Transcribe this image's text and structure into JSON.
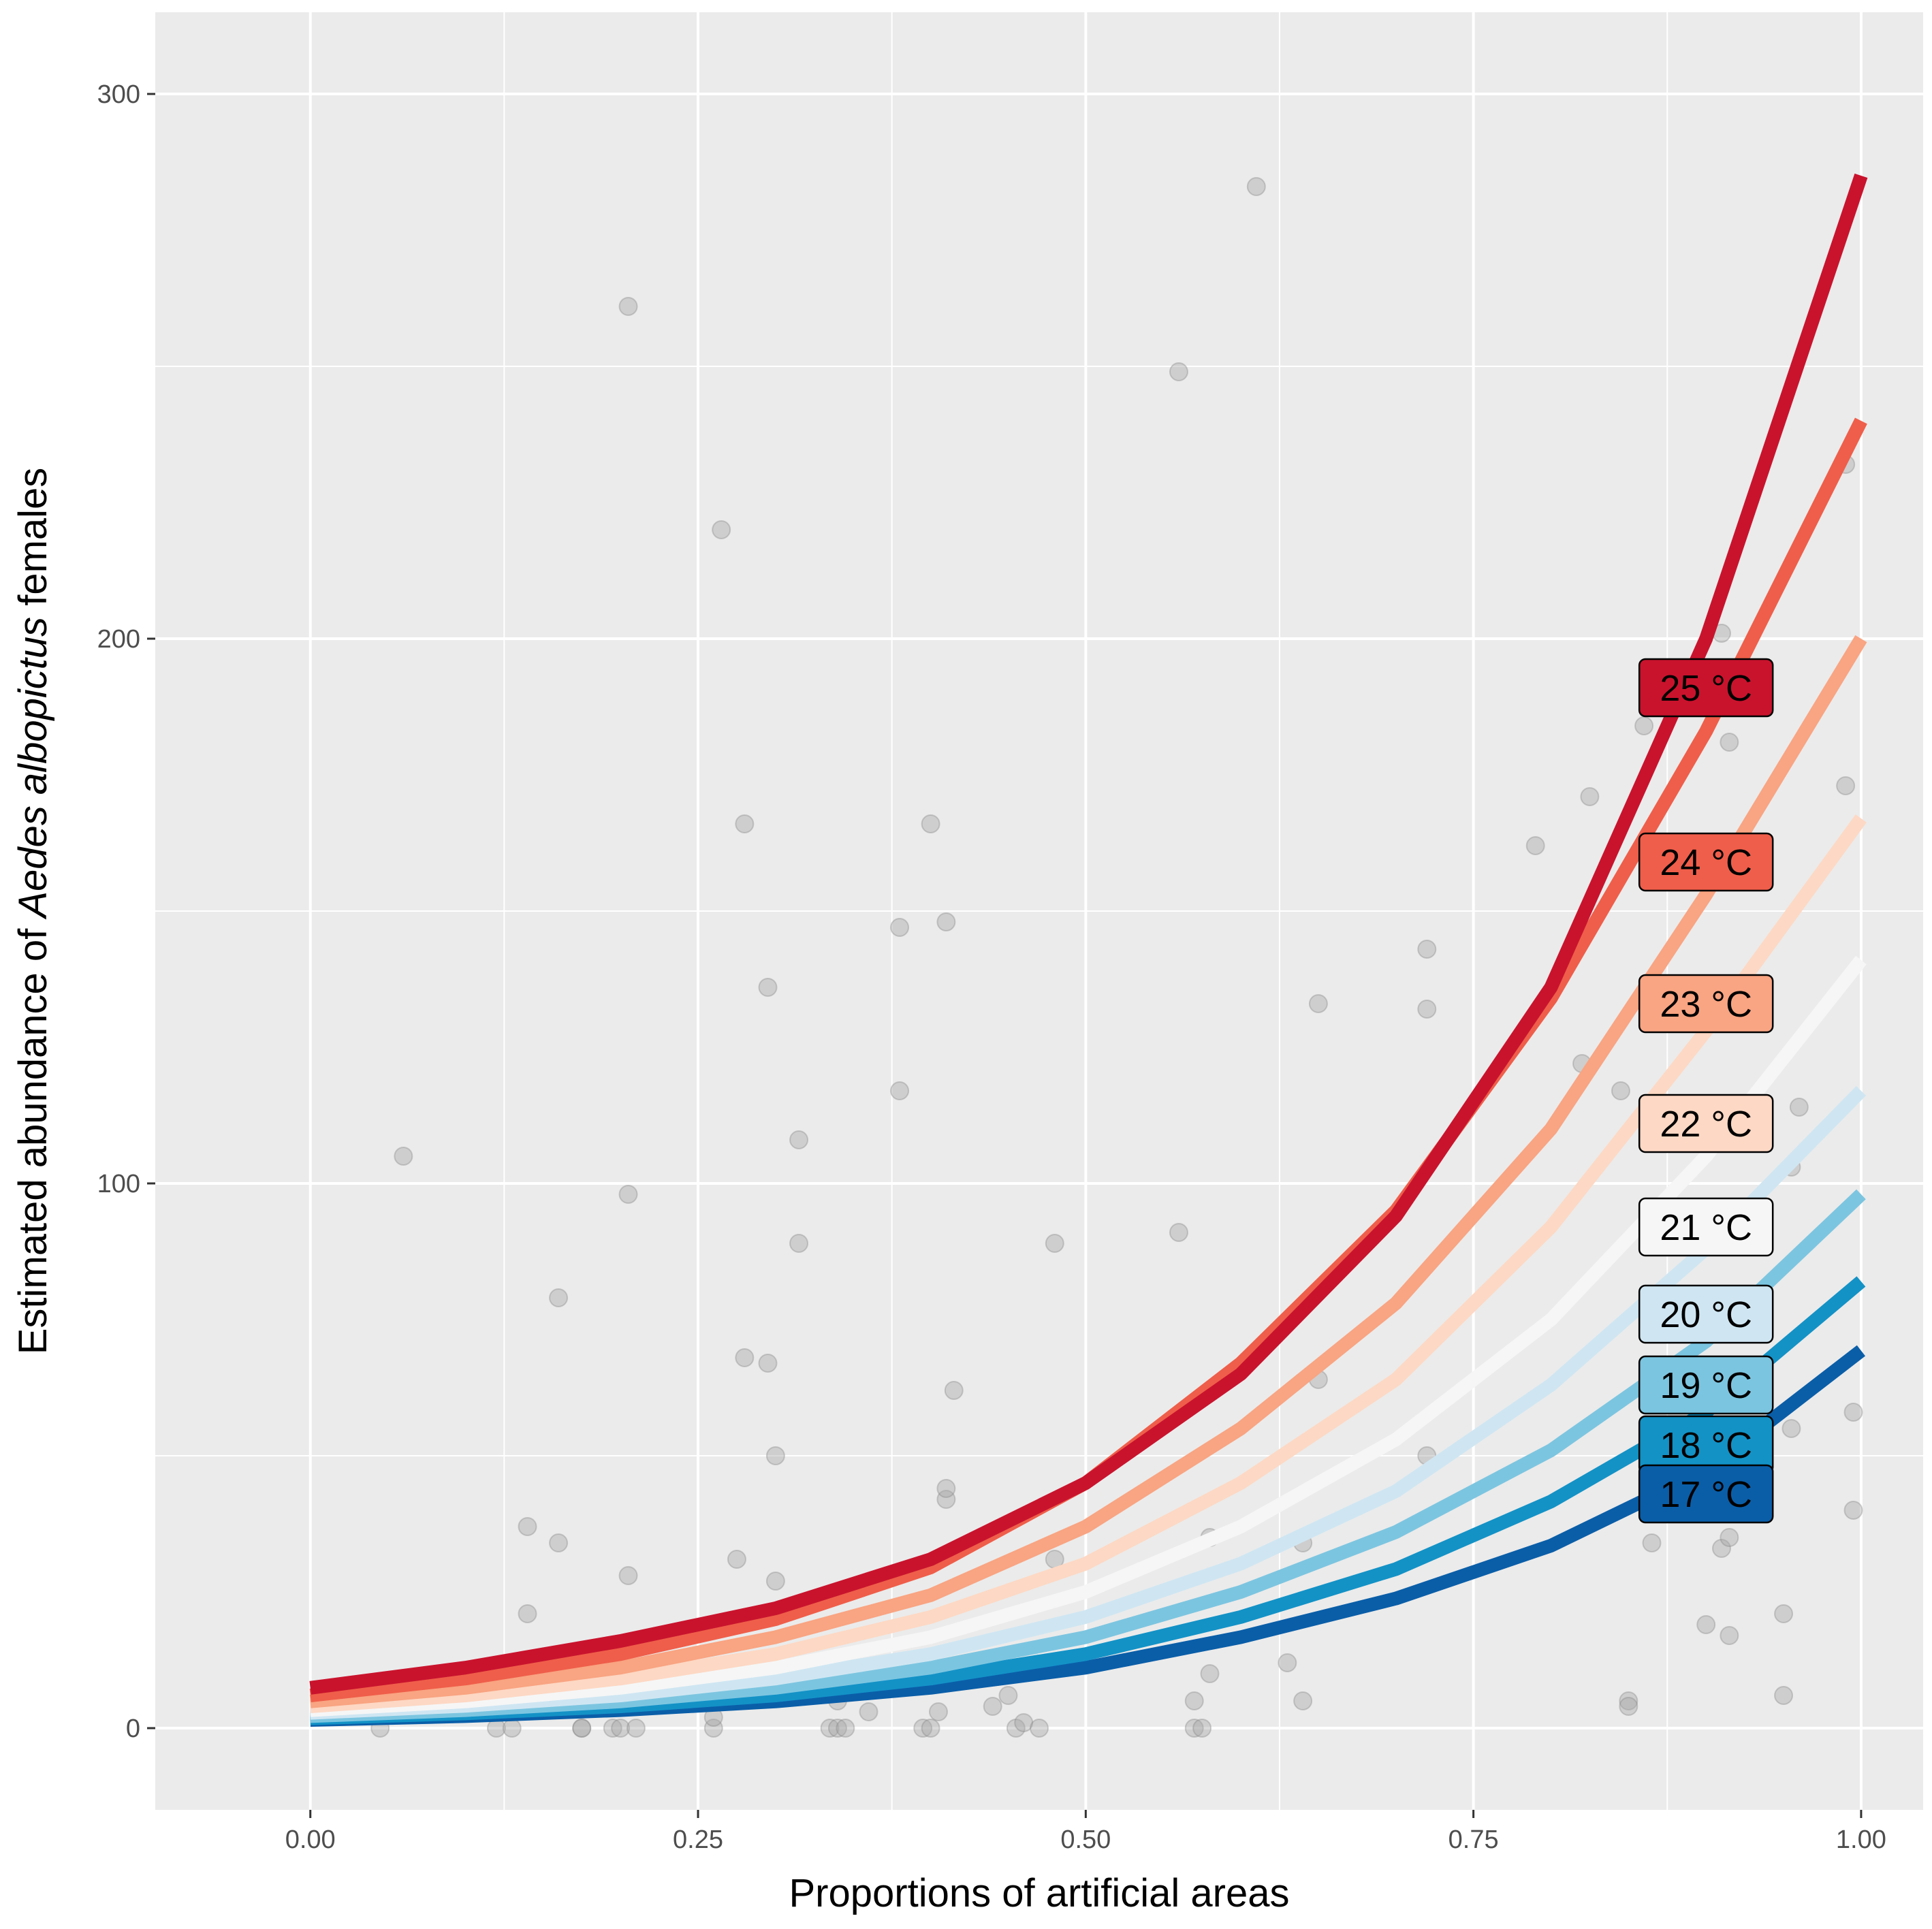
{
  "chart_data": {
    "type": "line",
    "title": "",
    "xlabel": "Proportions of artificial areas",
    "ylabel": {
      "prefix": "Estimated abundance of ",
      "italic": "Aedes albopictus",
      "suffix": " females"
    },
    "xlim": [
      -0.1,
      1.04
    ],
    "ylim": [
      -15,
      315
    ],
    "x_ticks": [
      0,
      0.25,
      0.5,
      0.75,
      1.0
    ],
    "x_tick_labels": [
      "0.00",
      "0.25",
      "0.50",
      "0.75",
      "1.00"
    ],
    "y_ticks": [
      0,
      100,
      200,
      300
    ],
    "y_tick_labels": [
      "0",
      "100",
      "200",
      "300"
    ],
    "grid": true,
    "x": [
      0,
      0.1,
      0.2,
      0.3,
      0.4,
      0.5,
      0.6,
      0.7,
      0.8,
      0.9,
      1.0
    ],
    "series": [
      {
        "name": "17 °C",
        "color": "#0a5ea8",
        "text_color": "#000000",
        "values": [
          1.5,
          2.2,
          3.3,
          4.9,
          7.4,
          11.1,
          16.7,
          23.8,
          33.5,
          47.3,
          69.3
        ]
      },
      {
        "name": "18 °C",
        "color": "#1392c6",
        "text_color": "#000000",
        "values": [
          1.8,
          2.7,
          4.0,
          6.0,
          9.1,
          13.6,
          20.4,
          29.2,
          41.6,
          58.0,
          82.0
        ]
      },
      {
        "name": "19 °C",
        "color": "#7cc5e0",
        "text_color": "#000000",
        "values": [
          2.2,
          3.3,
          4.9,
          7.4,
          11.1,
          16.7,
          25.0,
          36.0,
          51.0,
          71.0,
          98.0
        ]
      },
      {
        "name": "20 °C",
        "color": "#cfe6f2",
        "text_color": "#000000",
        "values": [
          2.8,
          4.1,
          6.0,
          9.1,
          13.6,
          20.4,
          30.2,
          43.5,
          63.0,
          88.0,
          117.0
        ]
      },
      {
        "name": "21 °C",
        "color": "#f6f6f6",
        "text_color": "#000000",
        "values": [
          3.3,
          4.9,
          7.4,
          11.1,
          16.7,
          25.0,
          37.0,
          53.0,
          75.0,
          105.0,
          141.0
        ]
      },
      {
        "name": "22 °C",
        "color": "#fdd8c4",
        "text_color": "#000000",
        "values": [
          4.0,
          6.0,
          9.1,
          13.6,
          20.4,
          30.2,
          45.0,
          64.0,
          92.0,
          128.0,
          167.0
        ]
      },
      {
        "name": "23 °C",
        "color": "#f9a482",
        "text_color": "#000000",
        "values": [
          4.9,
          7.4,
          11.1,
          16.7,
          24.4,
          37.0,
          55.0,
          78.0,
          110.0,
          153.0,
          200.0
        ]
      },
      {
        "name": "24 °C",
        "color": "#ef5e4a",
        "text_color": "#000000",
        "values": [
          6.0,
          9.1,
          13.6,
          20.0,
          29.5,
          45.0,
          67.0,
          95.0,
          134.0,
          183.0,
          240.0
        ]
      },
      {
        "name": "25 °C",
        "color": "#c9132d",
        "text_color": "#000000",
        "values": [
          7.4,
          11.1,
          16.0,
          22.0,
          31.0,
          45.0,
          65.0,
          94.0,
          136.0,
          200.0,
          285.0
        ]
      }
    ],
    "labels": [
      {
        "text": "25 °C",
        "x": 0.9,
        "y": 191
      },
      {
        "text": "24 °C",
        "x": 0.9,
        "y": 159
      },
      {
        "text": "23 °C",
        "x": 0.9,
        "y": 133
      },
      {
        "text": "22 °C",
        "x": 0.9,
        "y": 111
      },
      {
        "text": "21 °C",
        "x": 0.9,
        "y": 92
      },
      {
        "text": "20 °C",
        "x": 0.9,
        "y": 76
      },
      {
        "text": "19 °C",
        "x": 0.9,
        "y": 63
      },
      {
        "text": "18 °C",
        "x": 0.9,
        "y": 52
      },
      {
        "text": "17 °C",
        "x": 0.9,
        "y": 43
      }
    ],
    "points": {
      "color": "#a6a6a6",
      "data": [
        [
          0.045,
          0
        ],
        [
          0.06,
          105
        ],
        [
          0.12,
          0
        ],
        [
          0.13,
          0
        ],
        [
          0.14,
          37
        ],
        [
          0.14,
          21
        ],
        [
          0.16,
          34
        ],
        [
          0.16,
          79
        ],
        [
          0.175,
          0
        ],
        [
          0.175,
          0
        ],
        [
          0.195,
          0
        ],
        [
          0.2,
          0
        ],
        [
          0.205,
          98
        ],
        [
          0.205,
          28
        ],
        [
          0.205,
          261
        ],
        [
          0.21,
          0
        ],
        [
          0.26,
          0
        ],
        [
          0.26,
          2
        ],
        [
          0.265,
          220
        ],
        [
          0.275,
          31
        ],
        [
          0.28,
          68
        ],
        [
          0.28,
          166
        ],
        [
          0.295,
          67
        ],
        [
          0.295,
          136
        ],
        [
          0.3,
          50
        ],
        [
          0.3,
          27
        ],
        [
          0.315,
          108
        ],
        [
          0.315,
          89
        ],
        [
          0.335,
          0
        ],
        [
          0.34,
          0
        ],
        [
          0.345,
          0
        ],
        [
          0.34,
          5
        ],
        [
          0.36,
          3
        ],
        [
          0.38,
          147
        ],
        [
          0.38,
          117
        ],
        [
          0.395,
          0
        ],
        [
          0.4,
          0
        ],
        [
          0.4,
          166
        ],
        [
          0.405,
          3
        ],
        [
          0.41,
          148
        ],
        [
          0.41,
          42
        ],
        [
          0.41,
          44
        ],
        [
          0.415,
          62
        ],
        [
          0.44,
          4
        ],
        [
          0.45,
          6
        ],
        [
          0.455,
          0
        ],
        [
          0.46,
          1
        ],
        [
          0.47,
          0
        ],
        [
          0.48,
          89
        ],
        [
          0.48,
          31
        ],
        [
          0.56,
          91
        ],
        [
          0.56,
          249
        ],
        [
          0.57,
          0
        ],
        [
          0.57,
          5
        ],
        [
          0.575,
          0
        ],
        [
          0.58,
          10
        ],
        [
          0.58,
          35
        ],
        [
          0.61,
          283
        ],
        [
          0.63,
          12
        ],
        [
          0.64,
          5
        ],
        [
          0.64,
          34
        ],
        [
          0.65,
          64
        ],
        [
          0.65,
          133
        ],
        [
          0.72,
          143
        ],
        [
          0.72,
          132
        ],
        [
          0.72,
          50
        ],
        [
          0.79,
          162
        ],
        [
          0.82,
          122
        ],
        [
          0.825,
          171
        ],
        [
          0.845,
          117
        ],
        [
          0.85,
          5
        ],
        [
          0.85,
          4
        ],
        [
          0.86,
          184
        ],
        [
          0.865,
          34
        ],
        [
          0.9,
          19
        ],
        [
          0.91,
          201
        ],
        [
          0.915,
          181
        ],
        [
          0.91,
          33
        ],
        [
          0.915,
          35
        ],
        [
          0.915,
          17
        ],
        [
          0.95,
          21
        ],
        [
          0.95,
          6
        ],
        [
          0.955,
          55
        ],
        [
          0.955,
          103
        ],
        [
          0.96,
          114
        ],
        [
          0.99,
          173
        ],
        [
          0.995,
          58
        ],
        [
          0.995,
          40
        ],
        [
          0.99,
          232
        ]
      ]
    }
  }
}
